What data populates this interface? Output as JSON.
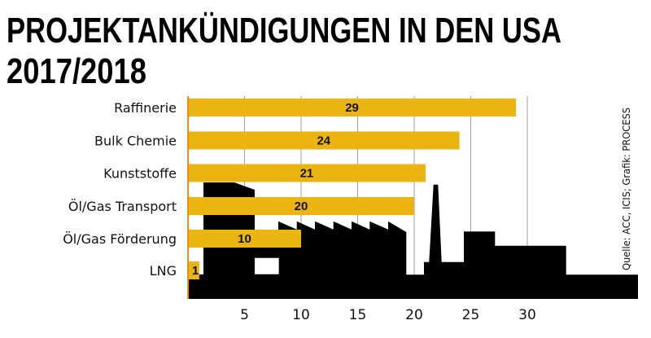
{
  "chart_data": {
    "type": "bar",
    "orientation": "horizontal",
    "title_lines": [
      "PROJEKTANKÜNDIGUNGEN IN DEN USA",
      "2017/2018"
    ],
    "categories": [
      "Raffinerie",
      "Bulk Chemie",
      "Kunststoffe",
      "Öl/Gas Transport",
      "Öl/Gas Förderung",
      "LNG"
    ],
    "values": [
      29,
      24,
      21,
      20,
      10,
      1
    ],
    "xticks": [
      5,
      10,
      15,
      20,
      25,
      30
    ],
    "xlim": [
      0,
      35
    ],
    "grid": "vertical",
    "source": "Quelle: ACC, ICIS; Grafik: PROCESS",
    "colors": {
      "bar": "#ECB410",
      "axis": "#E8901A",
      "grid": "#9A9FA8",
      "silhouette": "#000000"
    }
  }
}
